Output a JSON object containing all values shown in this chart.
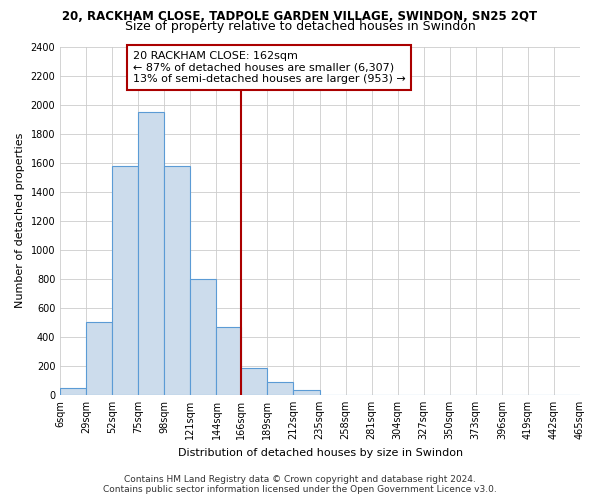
{
  "title": "20, RACKHAM CLOSE, TADPOLE GARDEN VILLAGE, SWINDON, SN25 2QT",
  "subtitle": "Size of property relative to detached houses in Swindon",
  "xlabel": "Distribution of detached houses by size in Swindon",
  "ylabel": "Number of detached properties",
  "bar_edges": [
    6,
    29,
    52,
    75,
    98,
    121,
    144,
    166,
    189,
    212,
    235,
    258,
    281,
    304,
    327,
    350,
    373,
    396,
    419,
    442,
    465
  ],
  "bar_heights": [
    50,
    500,
    1580,
    1950,
    1580,
    800,
    470,
    185,
    90,
    35,
    0,
    0,
    0,
    0,
    0,
    0,
    0,
    0,
    0,
    0
  ],
  "bar_color": "#ccdcec",
  "bar_edge_color": "#5b9bd5",
  "vline_x": 166,
  "vline_color": "#aa0000",
  "annotation_title": "20 RACKHAM CLOSE: 162sqm",
  "annotation_line1": "← 87% of detached houses are smaller (6,307)",
  "annotation_line2": "13% of semi-detached houses are larger (953) →",
  "annotation_box_color": "#ffffff",
  "annotation_box_edge": "#aa0000",
  "ylim": [
    0,
    2400
  ],
  "yticks": [
    0,
    200,
    400,
    600,
    800,
    1000,
    1200,
    1400,
    1600,
    1800,
    2000,
    2200,
    2400
  ],
  "xtick_labels": [
    "6sqm",
    "29sqm",
    "52sqm",
    "75sqm",
    "98sqm",
    "121sqm",
    "144sqm",
    "166sqm",
    "189sqm",
    "212sqm",
    "235sqm",
    "258sqm",
    "281sqm",
    "304sqm",
    "327sqm",
    "350sqm",
    "373sqm",
    "396sqm",
    "419sqm",
    "442sqm",
    "465sqm"
  ],
  "footer_line1": "Contains HM Land Registry data © Crown copyright and database right 2024.",
  "footer_line2": "Contains public sector information licensed under the Open Government Licence v3.0.",
  "bg_color": "#ffffff",
  "grid_color": "#cccccc",
  "title_fontsize": 8.5,
  "subtitle_fontsize": 9,
  "axis_label_fontsize": 8,
  "tick_fontsize": 7,
  "annotation_fontsize": 8,
  "footer_fontsize": 6.5
}
